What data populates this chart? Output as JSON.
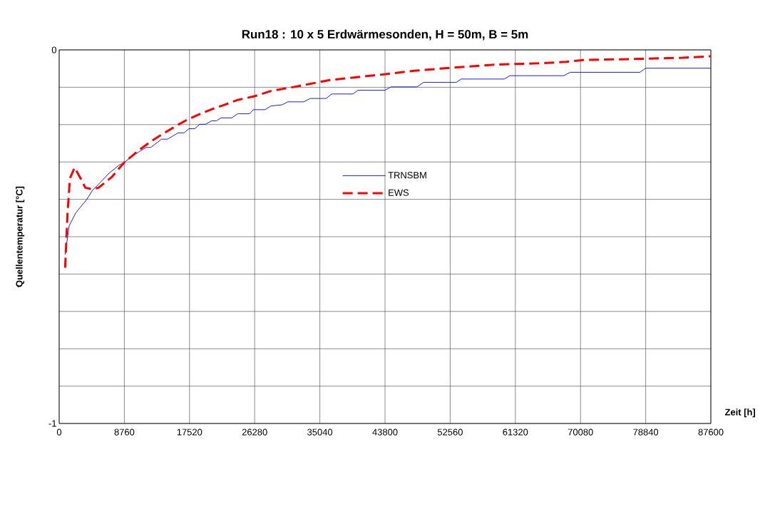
{
  "chart_data": {
    "type": "line",
    "title": "Run18 :  10 x 5 Erdwärmesonden,  H = 50m,  B = 5m",
    "xlabel": "Zeit [h]",
    "ylabel": "Quellentemperatur  [°C]",
    "xlim": [
      0,
      87600
    ],
    "xticks": [
      0,
      8760,
      17520,
      26280,
      35040,
      43800,
      52560,
      61320,
      70080,
      78840,
      87600
    ],
    "ylim": [
      -1,
      0
    ],
    "yticks": [
      -1,
      {
        "value": -0.9,
        "label": null
      },
      {
        "value": -0.8,
        "label": null
      },
      {
        "value": -0.7,
        "label": null
      },
      {
        "value": -0.6,
        "label": null
      },
      {
        "value": -0.5,
        "label": null
      },
      {
        "value": -0.4,
        "label": null
      },
      {
        "value": -0.3,
        "label": null
      },
      {
        "value": -0.2,
        "label": null
      },
      {
        "value": -0.1,
        "label": null
      },
      0
    ],
    "grid": true,
    "legend": "center",
    "series": [
      {
        "name": "TRNSBM",
        "color": "#0000ff",
        "line_style": "solid",
        "x": [
          800,
          1340,
          2240,
          3680,
          4480,
          5760,
          6720,
          8000,
          8760,
          9920,
          10880,
          11680,
          12320,
          13760,
          14560,
          16000,
          16800,
          17440,
          18240,
          18880,
          19680,
          20480,
          21120,
          21760,
          23200,
          24000,
          25600,
          26100,
          27680,
          28480,
          29970,
          30740,
          32830,
          33780,
          35880,
          36640,
          39500,
          40150,
          43800,
          44600,
          48100,
          48980,
          53360,
          54040,
          59830,
          60600,
          67840,
          68680,
          78050,
          78840,
          87600
        ],
        "values": [
          -0.548,
          -0.471,
          -0.436,
          -0.401,
          -0.376,
          -0.35,
          -0.33,
          -0.309,
          -0.301,
          -0.283,
          -0.271,
          -0.261,
          -0.261,
          -0.239,
          -0.239,
          -0.222,
          -0.222,
          -0.211,
          -0.211,
          -0.199,
          -0.199,
          -0.19,
          -0.19,
          -0.182,
          -0.182,
          -0.171,
          -0.171,
          -0.16,
          -0.16,
          -0.15,
          -0.147,
          -0.139,
          -0.139,
          -0.13,
          -0.13,
          -0.118,
          -0.118,
          -0.108,
          -0.108,
          -0.099,
          -0.099,
          -0.087,
          -0.087,
          -0.078,
          -0.078,
          -0.069,
          -0.069,
          -0.06,
          -0.06,
          -0.049,
          -0.049
        ]
      },
      {
        "name": "EWS",
        "color": "#ff0000",
        "line_style": "dashed",
        "x": [
          800,
          1120,
          1440,
          2080,
          2880,
          3520,
          4480,
          5280,
          7040,
          8760,
          10880,
          12480,
          14080,
          15680,
          17280,
          18880,
          20480,
          22080,
          24000,
          26240,
          28480,
          32450,
          36260,
          40070,
          43880,
          47690,
          52560,
          59040,
          64380,
          68180,
          70460,
          78090,
          83800,
          87600
        ],
        "values": [
          -0.583,
          -0.439,
          -0.344,
          -0.315,
          -0.344,
          -0.369,
          -0.373,
          -0.369,
          -0.341,
          -0.301,
          -0.266,
          -0.243,
          -0.223,
          -0.204,
          -0.186,
          -0.172,
          -0.159,
          -0.148,
          -0.134,
          -0.124,
          -0.11,
          -0.096,
          -0.081,
          -0.073,
          -0.065,
          -0.056,
          -0.048,
          -0.039,
          -0.036,
          -0.032,
          -0.027,
          -0.024,
          -0.021,
          -0.017
        ]
      }
    ]
  }
}
